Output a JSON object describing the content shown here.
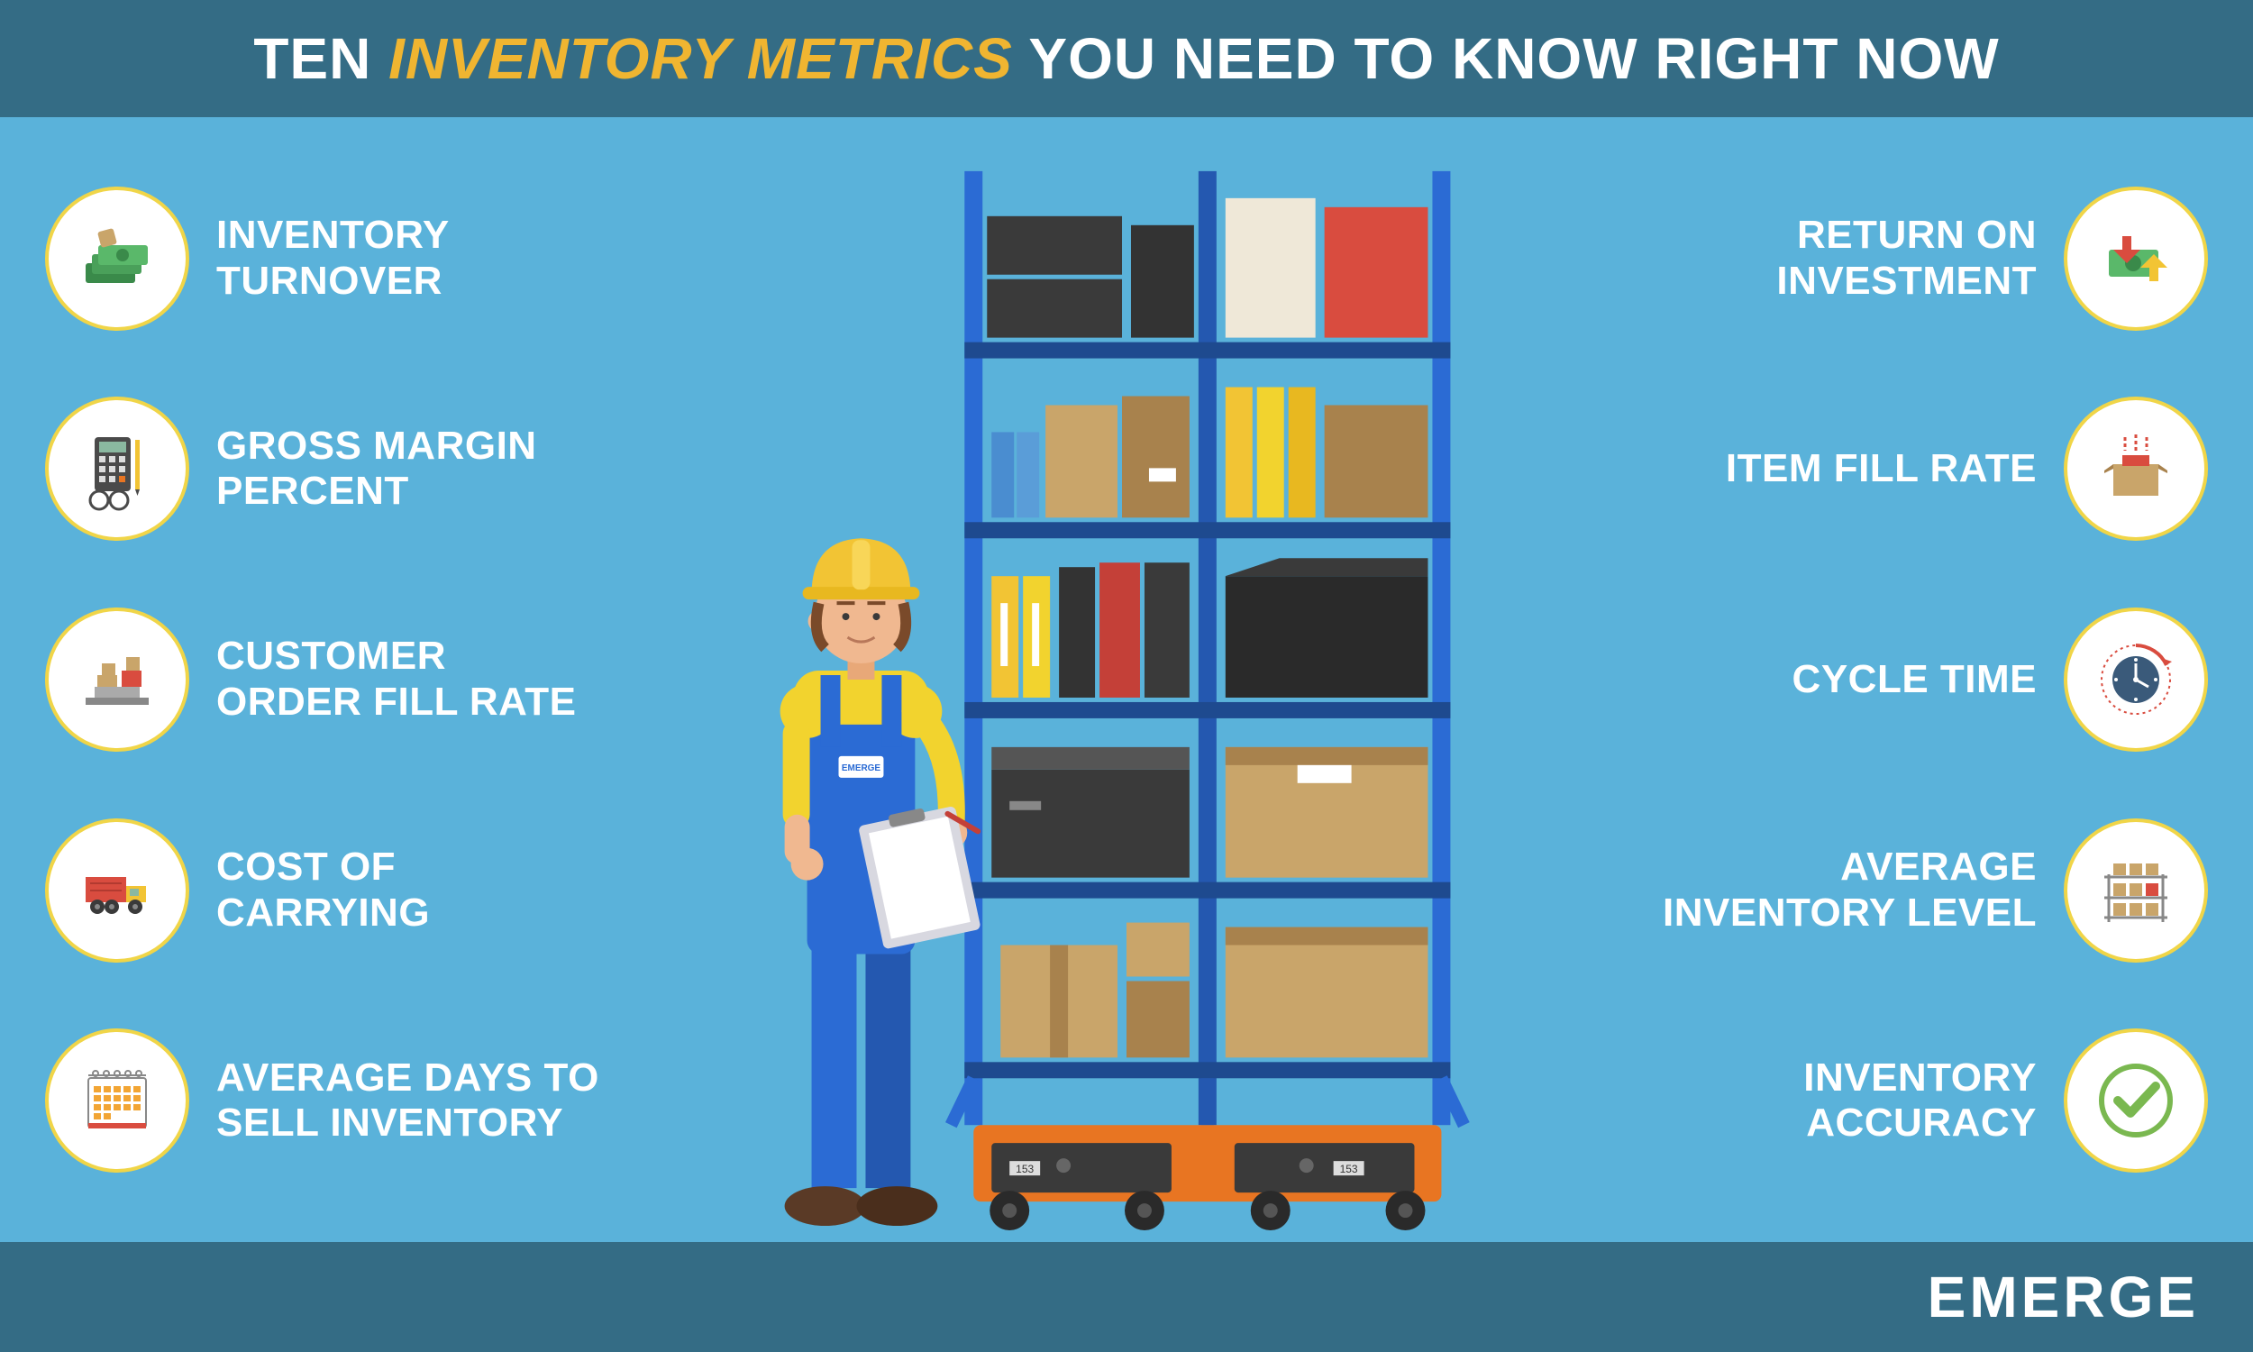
{
  "colors": {
    "header_bg": "#346c85",
    "body_bg": "#5ab2da",
    "footer_bg": "#346c85",
    "accent_yellow": "#f0b531",
    "white": "#ffffff",
    "ring": "#f0d548"
  },
  "header": {
    "part1": "TEN ",
    "part2": "INVENTORY METRICS",
    "part3": " YOU NEED TO KNOW RIGHT NOW"
  },
  "footer": {
    "brand": "EMERGE"
  },
  "metrics_left": [
    {
      "label": "INVENTORY\nTURNOVER",
      "icon": "money-stack"
    },
    {
      "label": "GROSS MARGIN\nPERCENT",
      "icon": "calculator"
    },
    {
      "label": "CUSTOMER\nORDER FILL RATE",
      "icon": "scale-boxes"
    },
    {
      "label": "COST OF\nCARRYING",
      "icon": "truck"
    },
    {
      "label": "AVERAGE DAYS TO\nSELL INVENTORY",
      "icon": "calendar"
    }
  ],
  "metrics_right": [
    {
      "label": "RETURN ON\nINVESTMENT",
      "icon": "money-arrows"
    },
    {
      "label": "ITEM FILL RATE",
      "icon": "box-fill"
    },
    {
      "label": "CYCLE TIME",
      "icon": "clock-cycle"
    },
    {
      "label": "AVERAGE\nINVENTORY LEVEL",
      "icon": "shelf-boxes"
    },
    {
      "label": "INVENTORY\nACCURACY",
      "icon": "checkmark"
    }
  ],
  "illustration": {
    "worker_badge": "EMERGE",
    "robot_id": "153",
    "shelf_color": "#2b6bd4",
    "robot_color": "#e87522",
    "hardhat_color": "#f2c434",
    "shirt_color": "#f2d32e",
    "overalls_color": "#2b6bd4",
    "skin_color": "#f0b890",
    "hair_color": "#7a4a2a",
    "shoe_color": "#5a3a26",
    "boxes": {
      "dark": "#3a3a3a",
      "cardboard": "#c9a56a",
      "cardboard_dark": "#a8824d",
      "red": "#d94c3f",
      "cream": "#efe8d8",
      "binder_yellow": "#f2c434",
      "binder_blue": "#4a8dd0",
      "binder_red": "#c44038",
      "binder_dark": "#333333"
    }
  }
}
